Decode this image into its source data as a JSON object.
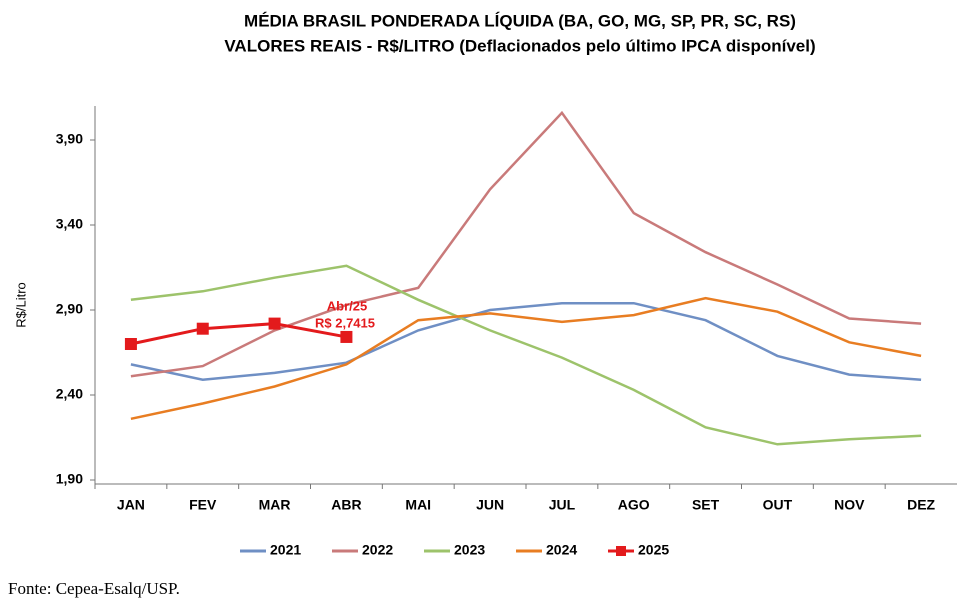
{
  "chart_data": {
    "type": "line",
    "title": "MÉDIA BRASIL PONDERADA LÍQUIDA (BA, GO, MG, SP, PR, SC, RS)",
    "subtitle": "VALORES REAIS - R$/LITRO (Deflacionados  pelo último IPCA disponível)",
    "y_label": "R$/Litro",
    "categories": [
      "JAN",
      "FEV",
      "MAR",
      "ABR",
      "MAI",
      "JUN",
      "JUL",
      "AGO",
      "SET",
      "OUT",
      "NOV",
      "DEZ"
    ],
    "series": [
      {
        "name": "2021",
        "color": "#6f8fc4",
        "values": [
          2.58,
          2.49,
          2.53,
          2.59,
          2.78,
          2.9,
          2.94,
          2.94,
          2.84,
          2.63,
          2.52,
          2.49
        ]
      },
      {
        "name": "2022",
        "color": "#c97a7a",
        "values": [
          2.51,
          2.57,
          2.78,
          2.93,
          3.03,
          3.61,
          4.06,
          3.47,
          3.24,
          3.05,
          2.85,
          2.82
        ]
      },
      {
        "name": "2023",
        "color": "#9dc36b",
        "values": [
          2.96,
          3.01,
          3.09,
          3.16,
          2.96,
          2.78,
          2.62,
          2.43,
          2.21,
          2.11,
          2.14,
          2.16
        ]
      },
      {
        "name": "2024",
        "color": "#e87d22",
        "values": [
          2.26,
          2.35,
          2.45,
          2.58,
          2.84,
          2.88,
          2.83,
          2.87,
          2.97,
          2.89,
          2.71,
          2.63
        ]
      },
      {
        "name": "2025",
        "color": "#e31a1c",
        "marker": "square",
        "values": [
          2.7,
          2.79,
          2.82,
          2.7415,
          null,
          null,
          null,
          null,
          null,
          null,
          null,
          null
        ]
      }
    ],
    "annotations": [
      "Abr/25",
      "R$ 2,7415"
    ],
    "ylim": [
      1.9,
      4.1
    ],
    "yticks": [
      {
        "value": 1.9,
        "label": "1,90"
      },
      {
        "value": 2.4,
        "label": "2,40"
      },
      {
        "value": 2.9,
        "label": "2,90"
      },
      {
        "value": 3.4,
        "label": "3,40"
      },
      {
        "value": 3.9,
        "label": "3,90"
      }
    ],
    "grid": false,
    "legend": "bottom",
    "source": "Fonte: Cepea-Esalq/USP."
  }
}
